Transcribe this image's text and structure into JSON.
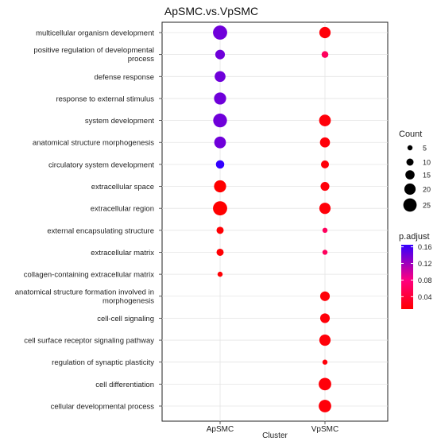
{
  "chart_data": {
    "type": "scatter",
    "title": "ApSMC.vs.VpSMC",
    "xlabel": "Cluster",
    "ylabel": "",
    "x_categories": [
      "ApSMC",
      "VpSMC"
    ],
    "y_categories": [
      "multicellular organism development",
      "positive regulation of developmental process",
      "defense response",
      "response to external stimulus",
      "system development",
      "anatomical structure morphogenesis",
      "circulatory system development",
      "extracellular space",
      "extracellular region",
      "external encapsulating structure",
      "extracellular matrix",
      "collagen-containing extracellular matrix",
      "anatomical structure formation involved in morphogenesis",
      "cell-cell signaling",
      "cell surface receptor signaling pathway",
      "regulation of synaptic plasticity",
      "cell differentiation",
      "cellular developmental process"
    ],
    "points": [
      {
        "cluster": "ApSMC",
        "term": "multicellular organism development",
        "count": 27,
        "p_adjust": 0.14
      },
      {
        "cluster": "ApSMC",
        "term": "positive regulation of developmental process",
        "count": 16,
        "p_adjust": 0.14
      },
      {
        "cluster": "ApSMC",
        "term": "defense response",
        "count": 19,
        "p_adjust": 0.14
      },
      {
        "cluster": "ApSMC",
        "term": "response to external stimulus",
        "count": 22,
        "p_adjust": 0.14
      },
      {
        "cluster": "ApSMC",
        "term": "system development",
        "count": 26,
        "p_adjust": 0.14
      },
      {
        "cluster": "ApSMC",
        "term": "anatomical structure morphogenesis",
        "count": 21,
        "p_adjust": 0.14
      },
      {
        "cluster": "ApSMC",
        "term": "circulatory system development",
        "count": 13,
        "p_adjust": 0.165
      },
      {
        "cluster": "ApSMC",
        "term": "extracellular space",
        "count": 22,
        "p_adjust": 0.01
      },
      {
        "cluster": "ApSMC",
        "term": "extracellular region",
        "count": 27,
        "p_adjust": 0.01
      },
      {
        "cluster": "ApSMC",
        "term": "external encapsulating structure",
        "count": 10,
        "p_adjust": 0.012
      },
      {
        "cluster": "ApSMC",
        "term": "extracellular matrix",
        "count": 10,
        "p_adjust": 0.012
      },
      {
        "cluster": "ApSMC",
        "term": "collagen-containing extracellular matrix",
        "count": 5,
        "p_adjust": 0.012
      },
      {
        "cluster": "VpSMC",
        "term": "multicellular organism development",
        "count": 20,
        "p_adjust": 0.015
      },
      {
        "cluster": "VpSMC",
        "term": "positive regulation of developmental process",
        "count": 9,
        "p_adjust": 0.06
      },
      {
        "cluster": "VpSMC",
        "term": "system development",
        "count": 21,
        "p_adjust": 0.015
      },
      {
        "cluster": "VpSMC",
        "term": "anatomical structure morphogenesis",
        "count": 17,
        "p_adjust": 0.015
      },
      {
        "cluster": "VpSMC",
        "term": "circulatory system development",
        "count": 12,
        "p_adjust": 0.015
      },
      {
        "cluster": "VpSMC",
        "term": "extracellular space",
        "count": 14,
        "p_adjust": 0.015
      },
      {
        "cluster": "VpSMC",
        "term": "extracellular region",
        "count": 20,
        "p_adjust": 0.015
      },
      {
        "cluster": "VpSMC",
        "term": "external encapsulating structure",
        "count": 5,
        "p_adjust": 0.06
      },
      {
        "cluster": "VpSMC",
        "term": "extracellular matrix",
        "count": 5,
        "p_adjust": 0.06
      },
      {
        "cluster": "VpSMC",
        "term": "anatomical structure formation involved in morphogenesis",
        "count": 16,
        "p_adjust": 0.015
      },
      {
        "cluster": "VpSMC",
        "term": "cell-cell signaling",
        "count": 16,
        "p_adjust": 0.015
      },
      {
        "cluster": "VpSMC",
        "term": "cell surface receptor signaling pathway",
        "count": 20,
        "p_adjust": 0.015
      },
      {
        "cluster": "VpSMC",
        "term": "regulation of synaptic plasticity",
        "count": 5,
        "p_adjust": 0.015
      },
      {
        "cluster": "VpSMC",
        "term": "cell differentiation",
        "count": 23,
        "p_adjust": 0.015
      },
      {
        "cluster": "VpSMC",
        "term": "cellular developmental process",
        "count": 23,
        "p_adjust": 0.015
      }
    ],
    "size_legend": {
      "title": "Count",
      "values": [
        5,
        10,
        15,
        20,
        25
      ]
    },
    "color_legend": {
      "title": "p.adjust",
      "ticks": [
        0.04,
        0.08,
        0.12,
        0.16
      ],
      "range": [
        0.01,
        0.165
      ],
      "low_color": "#ff0000",
      "mid_color": "#ff0080",
      "high_color": "#3300ff"
    },
    "grid": true,
    "legend_position": "right"
  }
}
